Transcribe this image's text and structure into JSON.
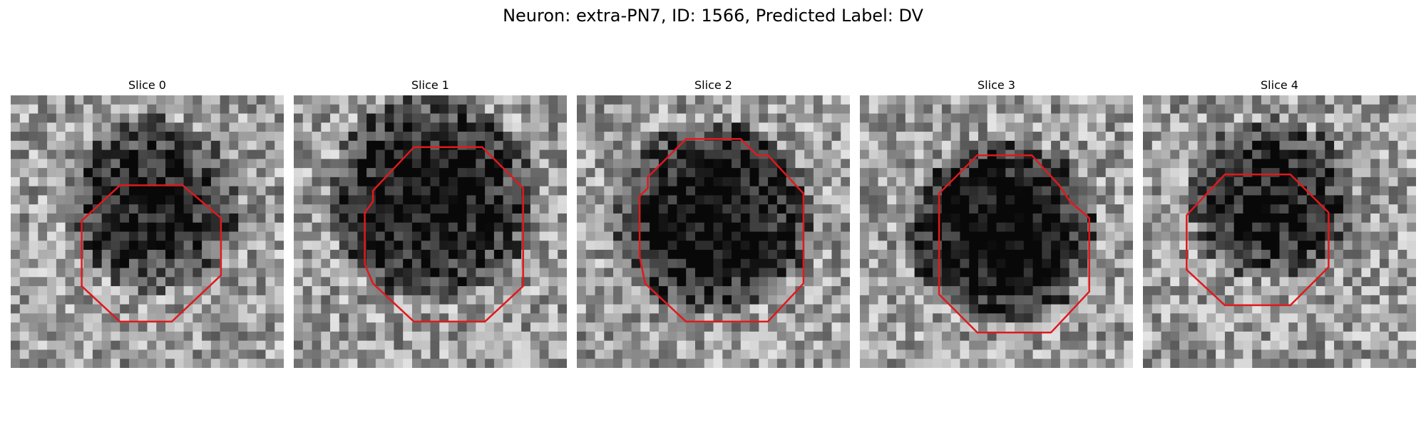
{
  "figure": {
    "title": "Neuron: extra-PN7, ID: 1566, Predicted Label: DV"
  },
  "colors": {
    "outline": "#e0191d"
  },
  "slices": [
    {
      "title": "Slice 0",
      "seed": 11,
      "dark_center": [
        0.52,
        0.4
      ],
      "dark_radius": 0.32,
      "dark_strength": 0.55,
      "octagon": [
        [
          0.4,
          0.33
        ],
        [
          0.63,
          0.33
        ],
        [
          0.77,
          0.45
        ],
        [
          0.77,
          0.66
        ],
        [
          0.59,
          0.83
        ],
        [
          0.4,
          0.83
        ],
        [
          0.26,
          0.7
        ],
        [
          0.26,
          0.46
        ]
      ]
    },
    {
      "title": "Slice 1",
      "seed": 23,
      "dark_center": [
        0.5,
        0.38
      ],
      "dark_radius": 0.38,
      "dark_strength": 0.6,
      "octagon": [
        [
          0.44,
          0.19
        ],
        [
          0.69,
          0.19
        ],
        [
          0.84,
          0.34
        ],
        [
          0.84,
          0.7
        ],
        [
          0.7,
          0.83
        ],
        [
          0.44,
          0.83
        ],
        [
          0.29,
          0.69
        ],
        [
          0.26,
          0.62
        ],
        [
          0.26,
          0.43
        ],
        [
          0.29,
          0.39
        ],
        [
          0.29,
          0.35
        ]
      ]
    },
    {
      "title": "Slice 2",
      "seed": 37,
      "dark_center": [
        0.5,
        0.45
      ],
      "dark_radius": 0.36,
      "dark_strength": 0.65,
      "octagon": [
        [
          0.4,
          0.16
        ],
        [
          0.6,
          0.16
        ],
        [
          0.66,
          0.22
        ],
        [
          0.7,
          0.22
        ],
        [
          0.83,
          0.36
        ],
        [
          0.83,
          0.69
        ],
        [
          0.7,
          0.83
        ],
        [
          0.4,
          0.83
        ],
        [
          0.25,
          0.69
        ],
        [
          0.23,
          0.59
        ],
        [
          0.23,
          0.37
        ],
        [
          0.26,
          0.34
        ],
        [
          0.26,
          0.3
        ]
      ]
    },
    {
      "title": "Slice 3",
      "seed": 51,
      "dark_center": [
        0.52,
        0.5
      ],
      "dark_radius": 0.34,
      "dark_strength": 0.7,
      "octagon": [
        [
          0.43,
          0.22
        ],
        [
          0.63,
          0.22
        ],
        [
          0.73,
          0.33
        ],
        [
          0.77,
          0.39
        ],
        [
          0.84,
          0.45
        ],
        [
          0.84,
          0.72
        ],
        [
          0.7,
          0.87
        ],
        [
          0.43,
          0.87
        ],
        [
          0.29,
          0.73
        ],
        [
          0.29,
          0.36
        ]
      ]
    },
    {
      "title": "Slice 4",
      "seed": 67,
      "dark_center": [
        0.47,
        0.38
      ],
      "dark_radius": 0.3,
      "dark_strength": 0.55,
      "octagon": [
        [
          0.3,
          0.29
        ],
        [
          0.54,
          0.29
        ],
        [
          0.68,
          0.43
        ],
        [
          0.68,
          0.63
        ],
        [
          0.54,
          0.77
        ],
        [
          0.3,
          0.77
        ],
        [
          0.16,
          0.64
        ],
        [
          0.16,
          0.44
        ]
      ]
    }
  ]
}
